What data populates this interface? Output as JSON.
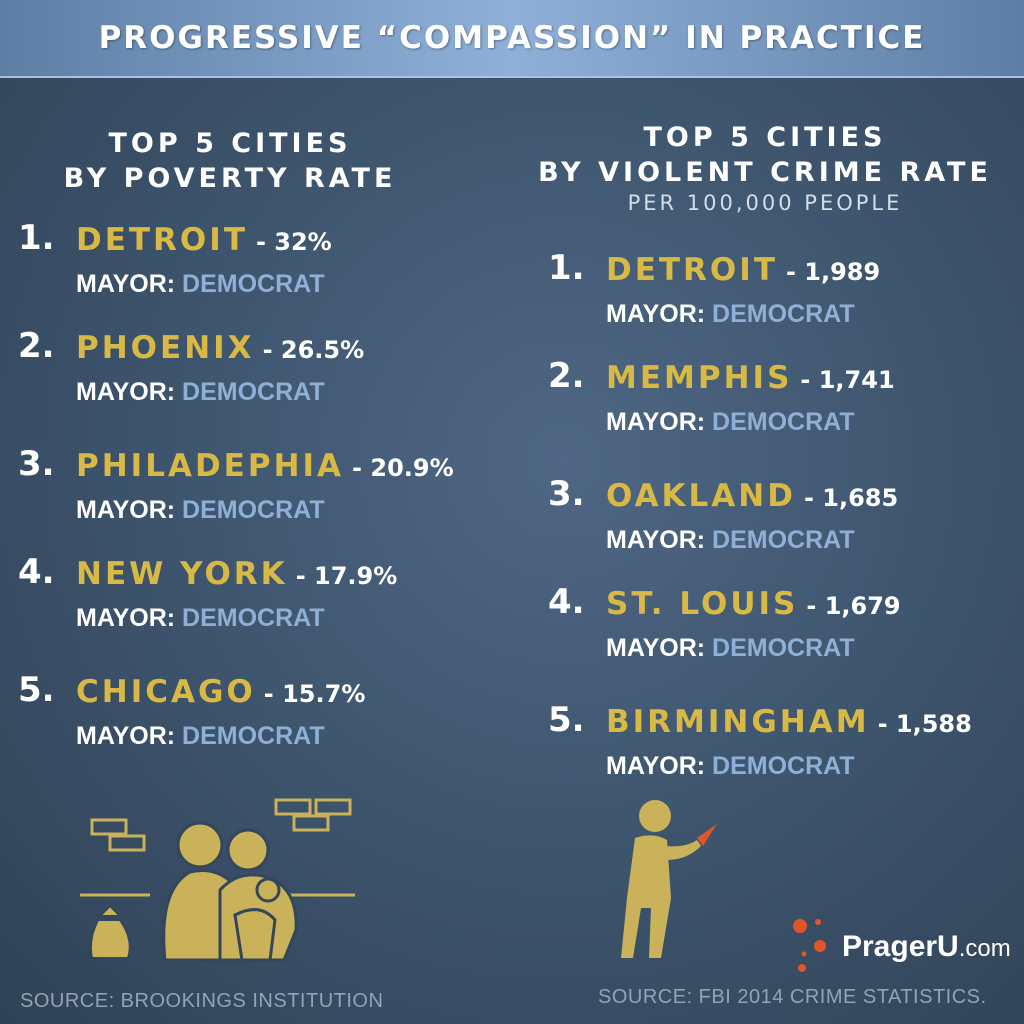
{
  "title": "PROGRESSIVE “COMPASSION” IN PRACTICE",
  "left": {
    "heading": [
      "TOP 5 CITIES",
      "BY POVERTY RATE"
    ],
    "entries": [
      {
        "rank": "1.",
        "city": "DETROIT",
        "value": "- 32%",
        "mayor_label": "MAYOR:",
        "party": "DEMOCRAT"
      },
      {
        "rank": "2.",
        "city": "PHOENIX",
        "value": "- 26.5%",
        "mayor_label": "MAYOR:",
        "party": "DEMOCRAT"
      },
      {
        "rank": "3.",
        "city": "PHILADEPHIA",
        "value": "- 20.9%",
        "mayor_label": "MAYOR:",
        "party": "DEMOCRAT"
      },
      {
        "rank": "4.",
        "city": "NEW YORK",
        "value": "- 17.9%",
        "mayor_label": "MAYOR:",
        "party": "DEMOCRAT"
      },
      {
        "rank": "5.",
        "city": "CHICAGO",
        "value": "- 15.7%",
        "mayor_label": "MAYOR:",
        "party": "DEMOCRAT"
      }
    ],
    "source": "SOURCE: BROOKINGS INSTITUTION"
  },
  "right": {
    "heading": [
      "TOP 5 CITIES",
      "BY VIOLENT CRIME RATE"
    ],
    "subheading": "PER 100,000 PEOPLE",
    "entries": [
      {
        "rank": "1.",
        "city": "DETROIT",
        "value": "- 1,989",
        "mayor_label": "MAYOR:",
        "party": "DEMOCRAT"
      },
      {
        "rank": "2.",
        "city": "MEMPHIS",
        "value": "- 1,741",
        "mayor_label": "MAYOR:",
        "party": "DEMOCRAT"
      },
      {
        "rank": "3.",
        "city": "OAKLAND",
        "value": "- 1,685",
        "mayor_label": "MAYOR:",
        "party": "DEMOCRAT"
      },
      {
        "rank": "4.",
        "city": "ST. LOUIS",
        "value": "- 1,679",
        "mayor_label": "MAYOR:",
        "party": "DEMOCRAT"
      },
      {
        "rank": "5.",
        "city": "BIRMINGHAM",
        "value": "- 1,588",
        "mayor_label": "MAYOR:",
        "party": "DEMOCRAT"
      }
    ],
    "source": "SOURCE: FBI 2014 CRIME STATISTICS."
  },
  "logo": {
    "name": "PragerU",
    "suffix": ".com"
  },
  "colors": {
    "city": "#d8b945",
    "party": "#8fb0d6",
    "illustration": "#c9b25a",
    "logo_dots": "#e0552a"
  },
  "icons": [
    "homeless-family-illustration",
    "money-bag-icon",
    "brick-wall-icon",
    "knife-attacker-illustration",
    "prageru-logo-dots"
  ]
}
